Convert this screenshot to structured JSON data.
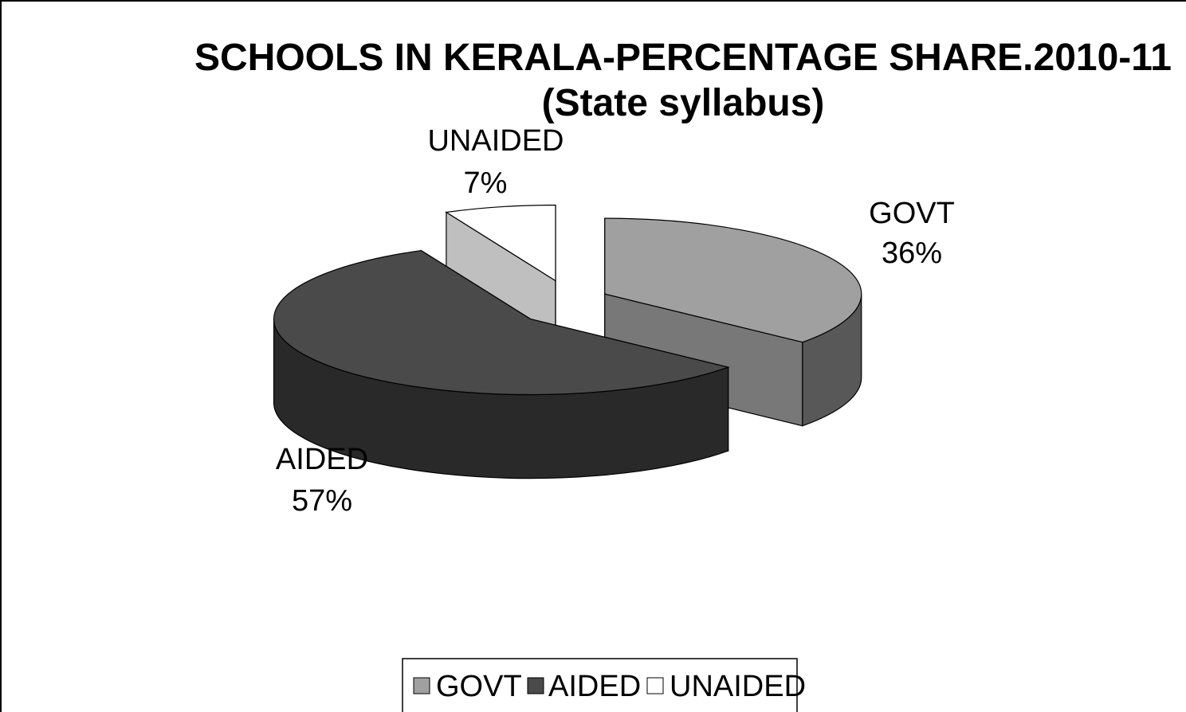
{
  "chart_data": {
    "type": "pie",
    "title": "SCHOOLS IN KERALA-PERCENTAGE SHARE.2010-11",
    "subtitle": "(State syllabus)",
    "categories": [
      "GOVT",
      "AIDED",
      "UNAIDED"
    ],
    "values": [
      36,
      57,
      7
    ],
    "data_labels": [
      {
        "category": "GOVT",
        "value": "36%"
      },
      {
        "category": "AIDED",
        "value": "57%"
      },
      {
        "category": "UNAIDED",
        "value": "7%"
      }
    ],
    "colors": {
      "GOVT": "#a0a0a0",
      "AIDED": "#4a4a4a",
      "UNAIDED": "#ffffff"
    },
    "legend": {
      "placement": "bottom",
      "entries": [
        "GOVT",
        "AIDED",
        "UNAIDED"
      ]
    },
    "style": "3d-exploded"
  }
}
